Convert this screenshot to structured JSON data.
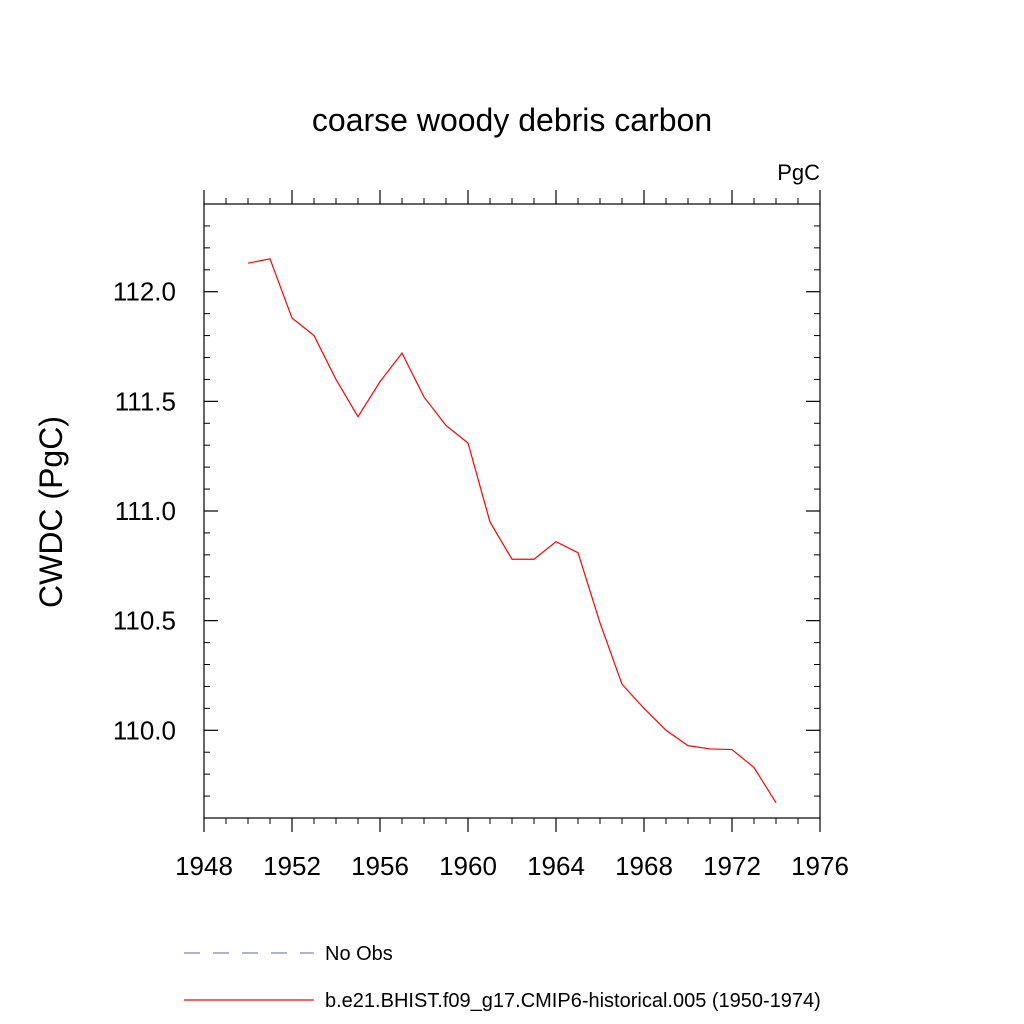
{
  "chart_data": {
    "type": "line",
    "title": "coarse woody debris carbon",
    "units": "PgC",
    "ylabel": "CWDC  (PgC)",
    "xlabel": "",
    "xlim": [
      1948,
      1976
    ],
    "ylim": [
      109.6,
      112.4
    ],
    "xticks": [
      1948,
      1952,
      1956,
      1960,
      1964,
      1968,
      1972,
      1976
    ],
    "xtick_labels": [
      "1948",
      "1952",
      "1956",
      "1960",
      "1964",
      "1968",
      "1972",
      "1976"
    ],
    "yticks": [
      110.0,
      110.5,
      111.0,
      111.5,
      112.0
    ],
    "ytick_labels": [
      "110.0",
      "110.5",
      "111.0",
      "111.5",
      "112.0"
    ],
    "grid": false,
    "legend_position": "bottom-left",
    "series": [
      {
        "name": "b.e21.BHIST.f09_g17.CMIP6-historical.005 (1950-1974)",
        "color": "#ff0000",
        "style": "solid",
        "x": [
          1950,
          1951,
          1952,
          1953,
          1954,
          1955,
          1956,
          1957,
          1958,
          1959,
          1960,
          1961,
          1962,
          1963,
          1964,
          1965,
          1966,
          1967,
          1968,
          1969,
          1970,
          1971,
          1972,
          1973,
          1974
        ],
        "y": [
          112.13,
          112.15,
          111.88,
          111.8,
          111.6,
          111.43,
          111.59,
          111.72,
          111.52,
          111.39,
          111.31,
          110.95,
          110.78,
          110.78,
          110.86,
          110.81,
          110.49,
          110.21,
          110.1,
          110.0,
          109.93,
          109.915,
          109.912,
          109.83,
          109.67
        ]
      }
    ],
    "legend": [
      {
        "label": "No Obs",
        "color": "#8080c0",
        "style": "dashed"
      },
      {
        "label": "b.e21.BHIST.f09_g17.CMIP6-historical.005 (1950-1974)",
        "color": "#ff0000",
        "style": "solid"
      }
    ]
  }
}
